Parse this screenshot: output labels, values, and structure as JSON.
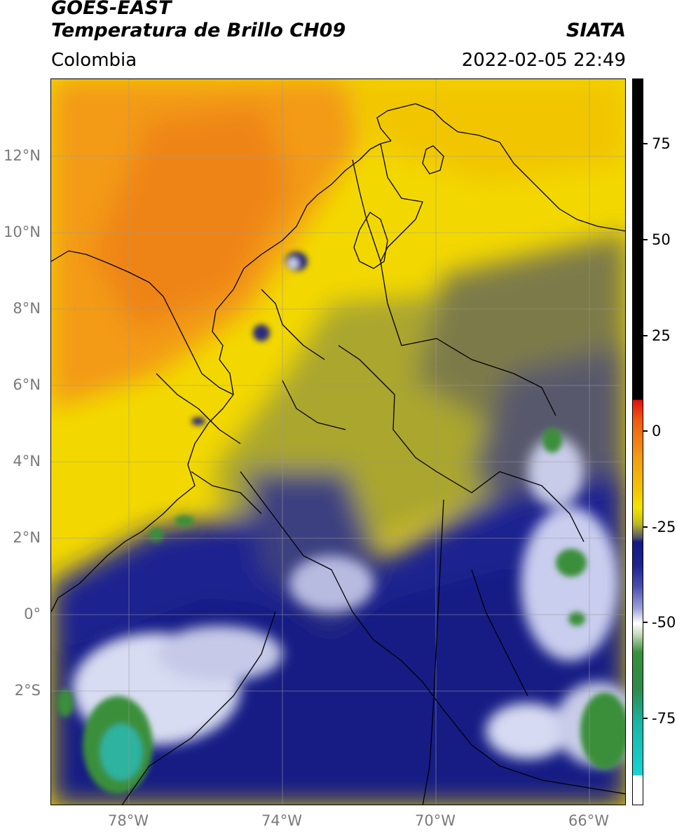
{
  "header": {
    "satellite": "GOES-EAST",
    "product": "Temperatura de Brillo CH09",
    "agency": "SIATA",
    "region": "Colombia",
    "datetime": "2022-02-05 22:49"
  },
  "map": {
    "lat_ticks": [
      "12°N",
      "10°N",
      "8°N",
      "6°N",
      "4°N",
      "2°N",
      "0°",
      "2°S"
    ],
    "lon_ticks": [
      "78°W",
      "74°W",
      "70°W",
      "66°W"
    ]
  },
  "colorbar": {
    "ticks": [
      "75",
      "50",
      "25",
      "0",
      "-25",
      "-50",
      "-75"
    ],
    "colors": {
      "black": "#000000",
      "red": "#e01010",
      "orange": "#f39a16",
      "yellow": "#f4e400",
      "olive": "#b2b02a",
      "gray": "#55556a",
      "navy": "#141a84",
      "white": "#ffffff",
      "green": "#3a8f3a",
      "cyan": "#17d4d4"
    }
  }
}
